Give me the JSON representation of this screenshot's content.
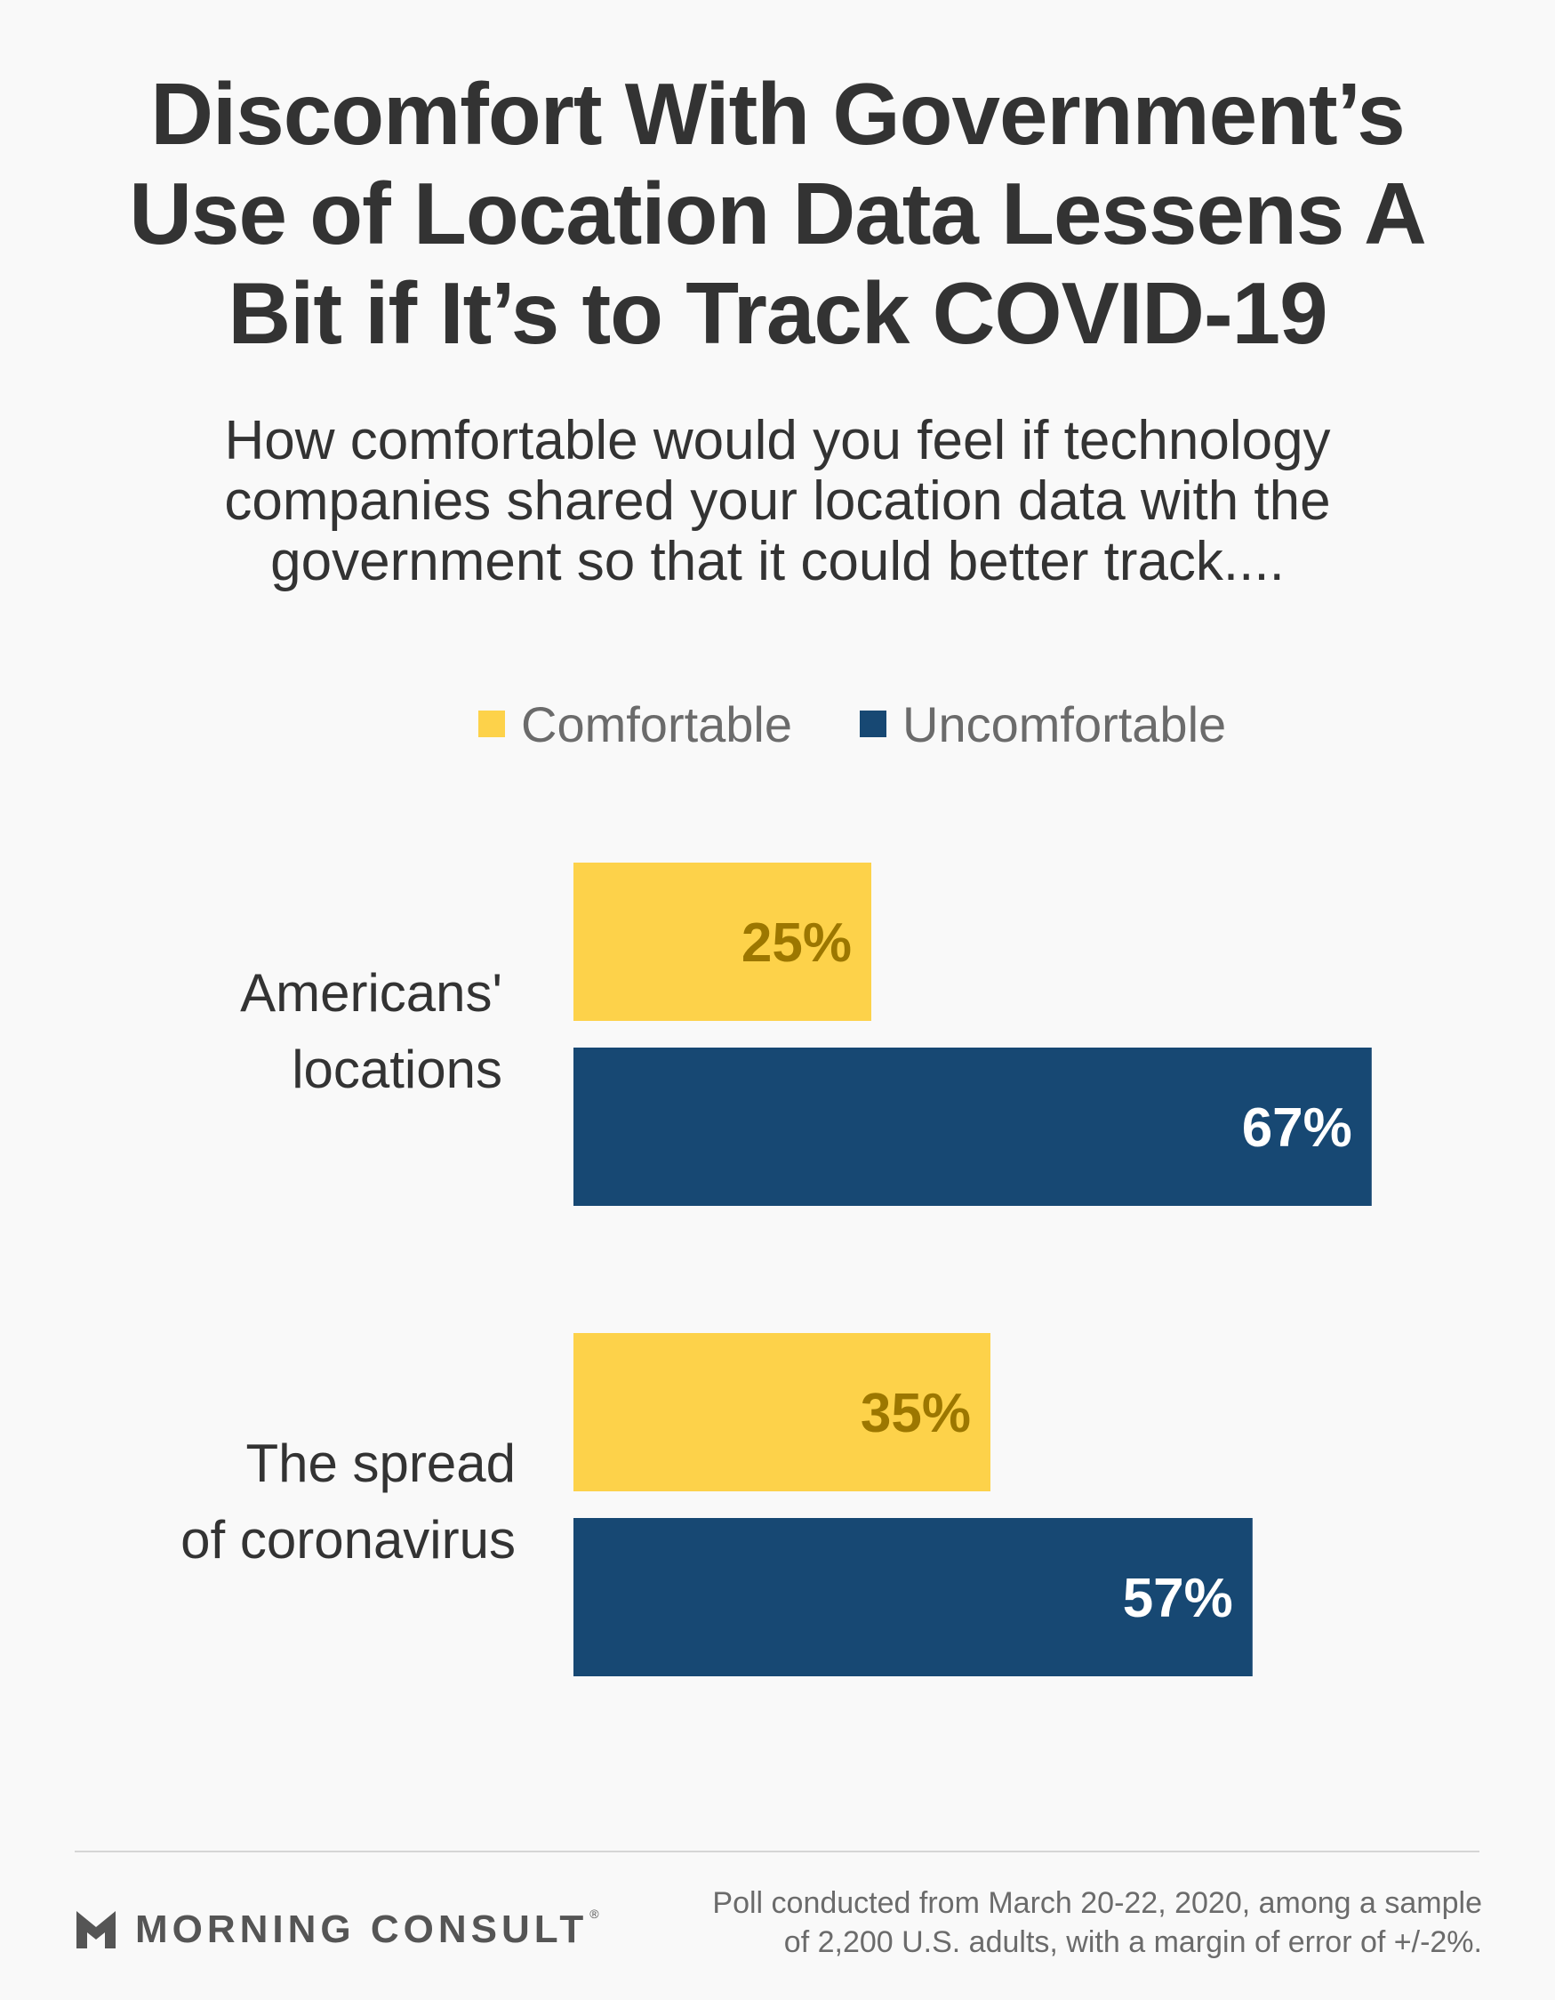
{
  "header": {
    "title_lines": [
      "Discomfort With Government’s",
      "Use of Location Data Lessens A",
      "Bit if It’s to Track COVID-19"
    ],
    "subtitle_lines": [
      "How comfortable would you feel if technology",
      "companies shared your location data with the",
      "government so that it could better track...."
    ]
  },
  "colors": {
    "comfortable": "#FDD24A",
    "uncomfortable": "#174873",
    "comfortable_label": "#9C7700",
    "uncomfortable_label": "#FFFFFF"
  },
  "chart_data": {
    "type": "bar",
    "orientation": "horizontal",
    "title": "Discomfort With Government’s Use of Location Data Lessens A Bit if It’s to Track COVID-19",
    "subtitle": "How comfortable would you feel if technology companies shared your location data with the government so that it could better track....",
    "categories": [
      [
        "Americans'",
        "locations"
      ],
      [
        "The spread",
        "of coronavirus"
      ]
    ],
    "series": [
      {
        "name": "Comfortable",
        "color": "#FDD24A",
        "values": [
          25,
          35
        ]
      },
      {
        "name": "Uncomfortable",
        "color": "#174873",
        "values": [
          67,
          57
        ]
      }
    ],
    "value_suffix": "%",
    "xlim": [
      0,
      100
    ],
    "xlabel": "",
    "ylabel": "",
    "grid": false,
    "legend": {
      "position": "top",
      "entries": [
        "Comfortable",
        "Uncomfortable"
      ]
    }
  },
  "footer": {
    "brand": "MORNING CONSULT",
    "brand_mark": "®",
    "note_lines": [
      "Poll conducted from March 20-22, 2020, among a sample",
      "of 2,200 U.S. adults, with a margin of error of +/-2%."
    ]
  }
}
